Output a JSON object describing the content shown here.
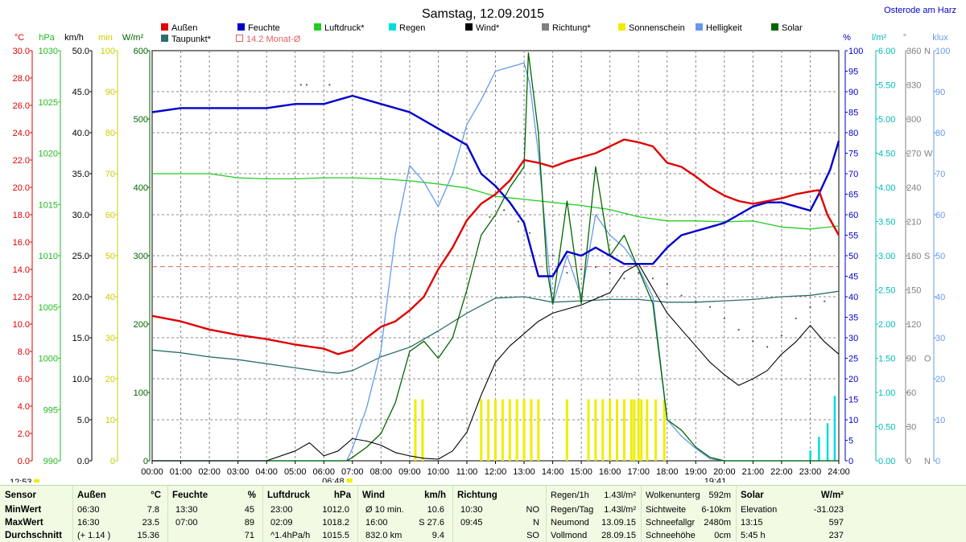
{
  "page": {
    "title": "Samstag, 12.09.2015",
    "location": "Osterode am Harz"
  },
  "markers": {
    "sunrise": "06:48",
    "sunset": "19:41",
    "update": "12:53",
    "monthly_avg_label": "14.2 Monat-Ø"
  },
  "legend": [
    {
      "label": "Außen",
      "color": "#e00000"
    },
    {
      "label": "Feuchte",
      "color": "#0000cc"
    },
    {
      "label": "Luftdruck*",
      "color": "#22cc22"
    },
    {
      "label": "Regen",
      "color": "#00dddd"
    },
    {
      "label": "Wind*",
      "color": "#000000"
    },
    {
      "label": "Richtung*",
      "color": "#808080"
    },
    {
      "label": "Sonnenschein",
      "color": "#eeee00"
    },
    {
      "label": "Helligkeit",
      "color": "#6699ee"
    },
    {
      "label": "Solar",
      "color": "#006600"
    },
    {
      "label": "Taupunkt*",
      "color": "#2e6e6e"
    }
  ],
  "axis_units": {
    "temp": "°C",
    "press": "hPa",
    "wind": "km/h",
    "sun": "min",
    "solar": "W/m²",
    "hum": "%",
    "rain": "l/m²",
    "dir": "°",
    "lux": "klux"
  },
  "chart_data": {
    "type": "line",
    "x_unit": "hours",
    "x_range": [
      0,
      24
    ],
    "x_ticks": [
      "00:00",
      "01:00",
      "02:00",
      "03:00",
      "04:00",
      "05:00",
      "06:00",
      "07:00",
      "08:00",
      "09:00",
      "10:00",
      "11:00",
      "12:00",
      "13:00",
      "14:00",
      "15:00",
      "16:00",
      "17:00",
      "18:00",
      "19:00",
      "20:00",
      "21:00",
      "22:00",
      "23:00",
      "24:00"
    ],
    "axes": {
      "temp": {
        "range": [
          0,
          30
        ],
        "step": 2
      },
      "press": {
        "range": [
          990,
          1030
        ],
        "step": 5
      },
      "wind": {
        "range": [
          0,
          50
        ],
        "step": 5
      },
      "sun": {
        "range": [
          0,
          100
        ],
        "step": 10
      },
      "solar": {
        "range": [
          0,
          600
        ],
        "step": 100
      },
      "hum": {
        "range": [
          0,
          100
        ],
        "step": 5
      },
      "rain": {
        "range": [
          0,
          6
        ],
        "step": 0.5
      },
      "dir": {
        "range": [
          0,
          360
        ],
        "step": 30,
        "labels": {
          "0": "N",
          "90": "O",
          "180": "S",
          "270": "W",
          "360": "N"
        }
      },
      "lux": {
        "range": [
          0,
          100
        ],
        "step": 10
      }
    },
    "monthly_avg_temp": 14.2,
    "series": {
      "temp": [
        [
          0,
          10.6
        ],
        [
          1,
          10.2
        ],
        [
          2,
          9.6
        ],
        [
          3,
          9.2
        ],
        [
          4,
          8.9
        ],
        [
          5,
          8.5
        ],
        [
          6,
          8.2
        ],
        [
          6.5,
          7.8
        ],
        [
          7,
          8.1
        ],
        [
          7.5,
          9.0
        ],
        [
          8,
          9.8
        ],
        [
          8.5,
          10.2
        ],
        [
          9,
          11.0
        ],
        [
          9.5,
          12.0
        ],
        [
          10,
          14.0
        ],
        [
          10.5,
          15.6
        ],
        [
          11,
          17.6
        ],
        [
          11.5,
          18.8
        ],
        [
          12,
          19.5
        ],
        [
          12.5,
          20.5
        ],
        [
          13,
          22.0
        ],
        [
          13.5,
          21.8
        ],
        [
          14,
          21.5
        ],
        [
          14.5,
          21.9
        ],
        [
          15,
          22.2
        ],
        [
          15.5,
          22.5
        ],
        [
          16,
          23.0
        ],
        [
          16.5,
          23.5
        ],
        [
          17,
          23.3
        ],
        [
          17.5,
          23.0
        ],
        [
          18,
          21.8
        ],
        [
          18.5,
          21.5
        ],
        [
          19,
          20.8
        ],
        [
          19.5,
          20.0
        ],
        [
          20,
          19.4
        ],
        [
          20.5,
          19.0
        ],
        [
          21,
          18.8
        ],
        [
          21.5,
          19.0
        ],
        [
          22,
          19.2
        ],
        [
          22.5,
          19.5
        ],
        [
          23,
          19.7
        ],
        [
          23.3,
          19.8
        ],
        [
          23.6,
          18.0
        ],
        [
          24,
          16.5
        ]
      ],
      "dew": [
        [
          0,
          8.1
        ],
        [
          1,
          7.9
        ],
        [
          2,
          7.6
        ],
        [
          3,
          7.4
        ],
        [
          4,
          7.1
        ],
        [
          5,
          6.8
        ],
        [
          6,
          6.5
        ],
        [
          6.5,
          6.4
        ],
        [
          7,
          6.6
        ],
        [
          8,
          7.6
        ],
        [
          9,
          8.3
        ],
        [
          10,
          9.5
        ],
        [
          11,
          10.8
        ],
        [
          12,
          11.9
        ],
        [
          13,
          12.0
        ],
        [
          14,
          11.6
        ],
        [
          15,
          11.7
        ],
        [
          16,
          11.8
        ],
        [
          17,
          11.8
        ],
        [
          18,
          11.6
        ],
        [
          19,
          11.6
        ],
        [
          20,
          11.7
        ],
        [
          21,
          11.8
        ],
        [
          22,
          12.0
        ],
        [
          23,
          12.1
        ],
        [
          24,
          12.4
        ]
      ],
      "hum": [
        [
          0,
          85
        ],
        [
          1,
          86
        ],
        [
          2,
          86
        ],
        [
          3,
          86
        ],
        [
          4,
          86
        ],
        [
          5,
          87
        ],
        [
          6,
          87
        ],
        [
          6.5,
          88
        ],
        [
          7,
          89
        ],
        [
          8,
          87
        ],
        [
          9,
          85
        ],
        [
          10,
          81
        ],
        [
          11,
          77
        ],
        [
          11.5,
          70
        ],
        [
          12,
          67
        ],
        [
          12.5,
          63
        ],
        [
          13,
          58
        ],
        [
          13.5,
          45
        ],
        [
          14,
          45
        ],
        [
          14.5,
          51
        ],
        [
          15,
          50
        ],
        [
          15.5,
          52
        ],
        [
          16,
          50
        ],
        [
          16.5,
          48
        ],
        [
          17,
          48
        ],
        [
          17.5,
          48
        ],
        [
          18,
          52
        ],
        [
          18.5,
          55
        ],
        [
          19,
          56
        ],
        [
          19.5,
          57
        ],
        [
          20,
          58
        ],
        [
          20.5,
          60
        ],
        [
          21,
          62
        ],
        [
          21.5,
          63
        ],
        [
          22,
          63
        ],
        [
          22.5,
          62
        ],
        [
          23,
          61
        ],
        [
          23.3,
          65
        ],
        [
          23.7,
          71
        ],
        [
          24,
          78
        ]
      ],
      "pressure": [
        [
          0,
          1018.0
        ],
        [
          2,
          1018.0
        ],
        [
          3,
          1017.6
        ],
        [
          4,
          1017.5
        ],
        [
          5,
          1017.5
        ],
        [
          6,
          1017.6
        ],
        [
          7,
          1017.6
        ],
        [
          8,
          1017.5
        ],
        [
          9,
          1017.3
        ],
        [
          10,
          1017.0
        ],
        [
          11,
          1016.6
        ],
        [
          12,
          1015.8
        ],
        [
          13,
          1015.5
        ],
        [
          14,
          1015.2
        ],
        [
          15,
          1014.9
        ],
        [
          16,
          1014.5
        ],
        [
          17,
          1013.8
        ],
        [
          18,
          1013.4
        ],
        [
          19,
          1013.4
        ],
        [
          20,
          1013.3
        ],
        [
          21,
          1013.4
        ],
        [
          22,
          1012.8
        ],
        [
          23,
          1012.6
        ],
        [
          24,
          1012.9
        ]
      ],
      "wind": [
        [
          0,
          0
        ],
        [
          4,
          0
        ],
        [
          5,
          1.2
        ],
        [
          5.5,
          2.2
        ],
        [
          6,
          0.6
        ],
        [
          6.5,
          1.2
        ],
        [
          7,
          2.7
        ],
        [
          7.5,
          2.4
        ],
        [
          8,
          1.9
        ],
        [
          8.5,
          1.0
        ],
        [
          9,
          0.6
        ],
        [
          9.5,
          0.3
        ],
        [
          10,
          0.2
        ],
        [
          10.5,
          1.2
        ],
        [
          11,
          3.5
        ],
        [
          11.5,
          8
        ],
        [
          12,
          12
        ],
        [
          12.5,
          14
        ],
        [
          13,
          15.5
        ],
        [
          13.5,
          17
        ],
        [
          14,
          18
        ],
        [
          15,
          19
        ],
        [
          16,
          20.5
        ],
        [
          16.5,
          23
        ],
        [
          17,
          24
        ],
        [
          17.5,
          21
        ],
        [
          18,
          18
        ],
        [
          18.5,
          16
        ],
        [
          19,
          14
        ],
        [
          19.5,
          12
        ],
        [
          20,
          10.5
        ],
        [
          20.5,
          9.2
        ],
        [
          21,
          10
        ],
        [
          21.5,
          11
        ],
        [
          22,
          13
        ],
        [
          22.5,
          14.5
        ],
        [
          23,
          16.5
        ],
        [
          23.5,
          14.5
        ],
        [
          24,
          13
        ]
      ],
      "solar": [
        [
          0,
          0
        ],
        [
          6.8,
          0
        ],
        [
          7,
          5
        ],
        [
          7.5,
          20
        ],
        [
          8,
          40
        ],
        [
          8.5,
          85
        ],
        [
          9,
          160
        ],
        [
          9.5,
          175
        ],
        [
          10,
          150
        ],
        [
          10.5,
          180
        ],
        [
          11,
          250
        ],
        [
          11.5,
          330
        ],
        [
          12,
          360
        ],
        [
          12.5,
          400
        ],
        [
          13,
          430
        ],
        [
          13.15,
          597
        ],
        [
          13.5,
          480
        ],
        [
          13.8,
          280
        ],
        [
          14,
          230
        ],
        [
          14.5,
          380
        ],
        [
          15,
          230
        ],
        [
          15.5,
          430
        ],
        [
          16,
          300
        ],
        [
          16.5,
          330
        ],
        [
          17,
          280
        ],
        [
          17.5,
          230
        ],
        [
          18,
          60
        ],
        [
          18.5,
          45
        ],
        [
          19,
          20
        ],
        [
          19.5,
          5
        ],
        [
          20,
          0
        ],
        [
          24,
          0
        ]
      ],
      "brightness": [
        [
          0,
          0
        ],
        [
          6.8,
          0
        ],
        [
          7,
          3
        ],
        [
          7.5,
          13
        ],
        [
          8,
          27
        ],
        [
          8.5,
          55
        ],
        [
          9,
          72
        ],
        [
          9.5,
          68
        ],
        [
          10,
          62
        ],
        [
          10.5,
          70
        ],
        [
          11,
          82
        ],
        [
          11.5,
          88
        ],
        [
          12,
          95
        ],
        [
          12.5,
          96
        ],
        [
          13,
          97
        ],
        [
          13.2,
          92
        ],
        [
          13.5,
          75
        ],
        [
          13.8,
          52
        ],
        [
          14,
          38
        ],
        [
          14.5,
          50
        ],
        [
          15,
          40
        ],
        [
          15.5,
          60
        ],
        [
          16,
          55
        ],
        [
          16.5,
          52
        ],
        [
          17,
          47
        ],
        [
          17.5,
          40
        ],
        [
          18,
          10
        ],
        [
          18.5,
          6
        ],
        [
          19,
          3
        ],
        [
          19.5,
          0.5
        ],
        [
          20,
          0
        ],
        [
          24,
          0
        ]
      ],
      "rain_hourly": [
        [
          23.0,
          0.15
        ],
        [
          23.3,
          0.35
        ],
        [
          23.6,
          0.55
        ],
        [
          23.85,
          0.95
        ]
      ],
      "direction": [
        [
          5.2,
          330
        ],
        [
          5.4,
          330
        ],
        [
          6.2,
          330
        ],
        [
          11.8,
          214
        ],
        [
          12.3,
          220
        ],
        [
          12.8,
          210
        ],
        [
          13.2,
          200
        ],
        [
          14.0,
          180
        ],
        [
          14.5,
          165
        ],
        [
          15,
          168
        ],
        [
          15.5,
          170
        ],
        [
          16,
          165
        ],
        [
          16.5,
          160
        ],
        [
          17,
          165
        ],
        [
          17.5,
          160
        ],
        [
          18,
          155
        ],
        [
          18.5,
          145
        ],
        [
          19,
          140
        ],
        [
          19.5,
          135
        ],
        [
          20,
          125
        ],
        [
          20.5,
          115
        ],
        [
          21,
          105
        ],
        [
          21.5,
          100
        ],
        [
          22,
          110
        ],
        [
          22.5,
          125
        ],
        [
          23,
          135
        ],
        [
          23.5,
          140
        ]
      ],
      "sunshine": [
        9.2,
        9.45,
        11.5,
        11.75,
        12.0,
        12.25,
        12.5,
        12.75,
        13.0,
        13.25,
        13.5,
        14.5,
        15.25,
        15.5,
        15.75,
        16.0,
        16.25,
        16.5,
        16.75,
        16.85,
        17.0,
        17.1,
        17.3,
        17.6,
        17.9
      ]
    }
  },
  "table": {
    "rows": [
      "Sensor",
      "MinWert",
      "MaxWert",
      "Durchschnitt"
    ],
    "sections": {
      "aussen": {
        "header": "Außen",
        "unit": "°C",
        "min": [
          "06:30",
          "7.8"
        ],
        "max": [
          "16:30",
          "23.5"
        ],
        "avg": [
          "(+ 1.14 )",
          "15.36"
        ]
      },
      "feuchte": {
        "header": "Feuchte",
        "unit": "%",
        "min": [
          "13:30",
          "45"
        ],
        "max": [
          "07:00",
          "89"
        ],
        "avg": [
          "",
          "71"
        ]
      },
      "luftdruck": {
        "header": "Luftdruck",
        "unit": "hPa",
        "min": [
          "23:00",
          "1012.0"
        ],
        "max": [
          "02:09",
          "1018.2"
        ],
        "avg": [
          "^1.4hPa/h",
          "1015.5"
        ]
      },
      "wind": {
        "header": "Wind",
        "unit": "km/h",
        "min": [
          "Ø 10 min.",
          "10.6"
        ],
        "max": [
          "16:00",
          "S 27.6"
        ],
        "avg": [
          "832.0 km",
          "9.4"
        ]
      },
      "richtung": {
        "header": "Richtung",
        "min": [
          "10:30",
          "NO"
        ],
        "max": [
          "09:45",
          "N"
        ],
        "avg": [
          "",
          "SO"
        ]
      },
      "regen": [
        [
          "Regen/1h",
          "1.43l/m²"
        ],
        [
          "Regen/Tag",
          "1.43l/m²"
        ],
        [
          "Neumond",
          "13.09.15"
        ],
        [
          "Vollmond",
          "28.09.15"
        ]
      ],
      "wolken": [
        [
          "Wolkenunterg",
          "592m"
        ],
        [
          "Sichtweite",
          "6-10km"
        ],
        [
          "Schneefallgr",
          "2480m"
        ],
        [
          "Schneehöhe",
          "0cm"
        ]
      ],
      "solar": {
        "header": "Solar",
        "unit": "W/m²",
        "rows": [
          [
            "Elevation",
            "-31.023"
          ],
          [
            "13:15",
            "597"
          ],
          [
            "5:45 h",
            "237"
          ]
        ]
      }
    }
  }
}
